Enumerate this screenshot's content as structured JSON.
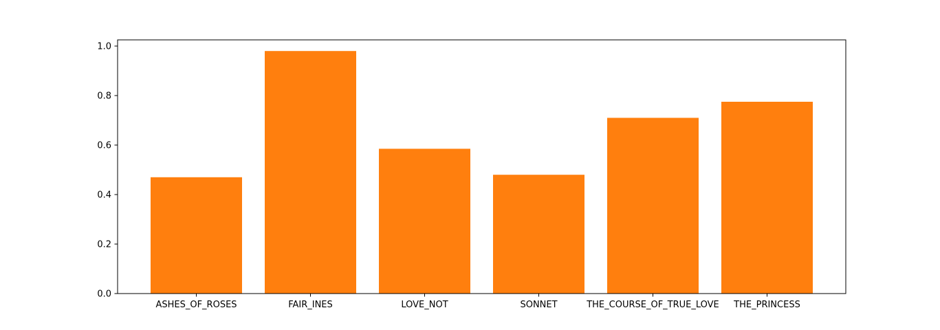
{
  "chart_data": {
    "type": "bar",
    "categories": [
      "ASHES_OF_ROSES",
      "FAIR_INES",
      "LOVE_NOT",
      "SONNET",
      "THE_COURSE_OF_TRUE_LOVE",
      "THE_PRINCESS"
    ],
    "values": [
      0.47,
      0.98,
      0.585,
      0.48,
      0.71,
      0.775
    ],
    "title": "",
    "xlabel": "",
    "ylabel": "",
    "ylim": [
      0,
      1.025
    ],
    "yticks": [
      0.0,
      0.2,
      0.4,
      0.6,
      0.8,
      1.0
    ],
    "ytick_labels": [
      "0.0",
      "0.2",
      "0.4",
      "0.6",
      "0.8",
      "1.0"
    ],
    "bar_color": "#ff7f0e",
    "grid": false,
    "legend": "none"
  }
}
